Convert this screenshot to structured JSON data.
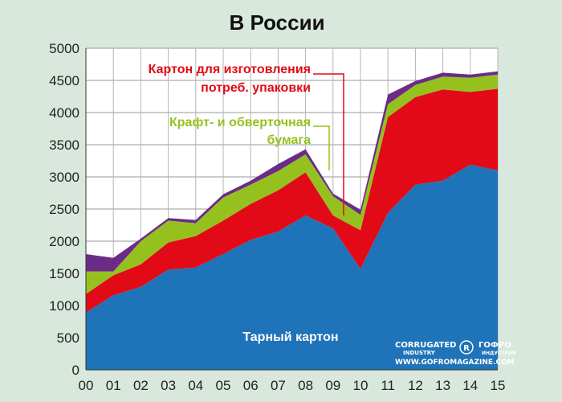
{
  "chart_data": {
    "type": "area",
    "stacked": true,
    "title": "В России",
    "categories": [
      "00",
      "01",
      "02",
      "03",
      "04",
      "05",
      "06",
      "07",
      "08",
      "09",
      "10",
      "11",
      "12",
      "13",
      "14",
      "15"
    ],
    "ylim": [
      0,
      5000
    ],
    "yticks": [
      "0",
      "500",
      "1000",
      "1500",
      "2000",
      "2500",
      "3000",
      "3500",
      "4000",
      "4500",
      "5000"
    ],
    "grid": true,
    "series": [
      {
        "name": "Тарный картон",
        "color": "#1f73b9",
        "values": [
          890,
          1160,
          1290,
          1560,
          1590,
          1800,
          2020,
          2150,
          2400,
          2200,
          1570,
          2440,
          2880,
          2940,
          3190,
          3100
        ]
      },
      {
        "name": "Картон для изготовления потреб. упаковки",
        "color": "#e20a17",
        "values": [
          290,
          310,
          350,
          420,
          490,
          520,
          560,
          640,
          670,
          200,
          600,
          1490,
          1360,
          1420,
          1130,
          1270
        ]
      },
      {
        "name": "Крафт- и обверточная бумага",
        "color": "#95c11f",
        "values": [
          350,
          60,
          360,
          340,
          200,
          360,
          300,
          300,
          280,
          300,
          240,
          200,
          190,
          200,
          220,
          220
        ]
      },
      {
        "name": "",
        "color": "#6b2c87",
        "values": [
          270,
          210,
          40,
          40,
          50,
          50,
          60,
          110,
          80,
          40,
          80,
          150,
          60,
          60,
          50,
          50
        ]
      }
    ],
    "annotations": [
      {
        "lines": [
          "Картон для изготовления",
          "потреб. упаковки"
        ],
        "color": "#e20a17"
      },
      {
        "lines": [
          "Крафт- и обверточная",
          "бумага"
        ],
        "color": "#95c11f"
      }
    ]
  },
  "watermark": {
    "corrugated": "CORRUGATED",
    "industry": "INDUSTRY",
    "gofro": "ГОФРО",
    "gofro_sub": "ИНДУСТРИЯ",
    "registered": "R",
    "url": "WWW.GOFROMAGAZINE.COM"
  }
}
